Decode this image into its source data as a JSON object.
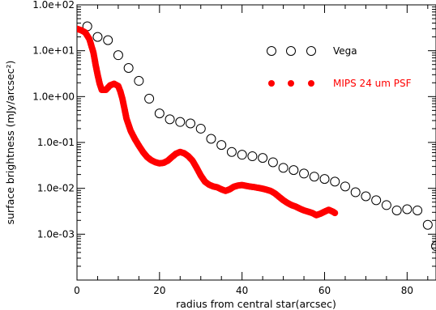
{
  "chart_data": {
    "type": "scatter",
    "xlabel": "radius from central star(arcsec)",
    "ylabel": "surface brightness (mJy/arcsec²)",
    "xlim": [
      0,
      87
    ],
    "ylim": [
      0.0001,
      100
    ],
    "yscale": "log",
    "x_ticks": [
      "0",
      "20",
      "40",
      "60",
      "80"
    ],
    "x_tick_values": [
      0,
      20,
      40,
      60,
      80
    ],
    "y_ticks": [
      "1.0e+02",
      "1.0e+01",
      "1.0e+00",
      "1.0e-01",
      "1.0e-02",
      "1.0e-03"
    ],
    "y_tick_values": [
      100,
      10,
      1,
      0.1,
      0.01,
      0.001
    ],
    "grid": false,
    "legend_position": "top-right",
    "series": [
      {
        "name": "Vega",
        "marker": "open-circle",
        "color": "#000000",
        "x": [
          2.5,
          5,
          7.5,
          10,
          12.5,
          15,
          17.5,
          20,
          22.5,
          25,
          27.5,
          30,
          32.5,
          35,
          37.5,
          40,
          42.5,
          45,
          47.5,
          50,
          52.5,
          55,
          57.5,
          60,
          62.5,
          65,
          67.5,
          70,
          72.5,
          75,
          77.5,
          80,
          82.5,
          85,
          87
        ],
        "y": [
          34,
          20,
          17,
          8,
          4.2,
          2.2,
          0.9,
          0.43,
          0.32,
          0.28,
          0.26,
          0.2,
          0.12,
          0.088,
          0.062,
          0.054,
          0.05,
          0.046,
          0.037,
          0.028,
          0.025,
          0.021,
          0.018,
          0.016,
          0.014,
          0.011,
          0.0082,
          0.0067,
          0.0055,
          0.0043,
          0.0033,
          0.0035,
          0.0033,
          0.0016,
          0.00055
        ]
      },
      {
        "name": "MIPS 24 um PSF",
        "marker": "filled-circle",
        "color": "#ff0000",
        "x": [
          0,
          1,
          2,
          3,
          4,
          4.5,
          5,
          5.5,
          6,
          7,
          8,
          9,
          10,
          10.5,
          11,
          11.5,
          12,
          13,
          14,
          15,
          16,
          17,
          18,
          19,
          20,
          21,
          22,
          23,
          24,
          25,
          26,
          27,
          28,
          29,
          30,
          31,
          32,
          33,
          34,
          35,
          36,
          37,
          38,
          39,
          40,
          41,
          42,
          43,
          44,
          45,
          46,
          47,
          48,
          49,
          50,
          51,
          52,
          53,
          54,
          55,
          56,
          57,
          58,
          59,
          60,
          61,
          62,
          62.5
        ],
        "y": [
          30,
          28,
          25,
          18,
          9,
          5,
          3,
          1.9,
          1.4,
          1.4,
          1.75,
          1.9,
          1.7,
          1.3,
          0.9,
          0.55,
          0.33,
          0.18,
          0.12,
          0.085,
          0.062,
          0.048,
          0.041,
          0.037,
          0.035,
          0.036,
          0.04,
          0.048,
          0.057,
          0.062,
          0.058,
          0.05,
          0.04,
          0.028,
          0.019,
          0.014,
          0.012,
          0.011,
          0.0105,
          0.0095,
          0.0088,
          0.0095,
          0.0108,
          0.0115,
          0.0118,
          0.0113,
          0.0109,
          0.0106,
          0.0102,
          0.0098,
          0.0093,
          0.0087,
          0.0077,
          0.0065,
          0.0055,
          0.0048,
          0.0043,
          0.004,
          0.0036,
          0.0033,
          0.0031,
          0.0029,
          0.0026,
          0.0028,
          0.0031,
          0.0034,
          0.0031,
          0.0029
        ]
      }
    ]
  }
}
